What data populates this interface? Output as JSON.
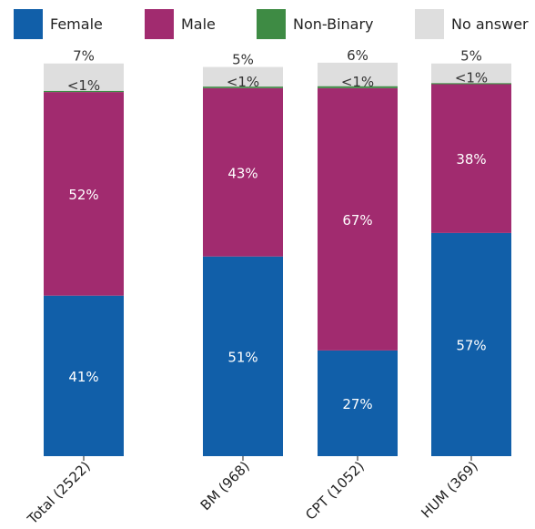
{
  "chart_data": {
    "type": "bar",
    "stacked": true,
    "percent_stacked": true,
    "categories": [
      "Total (2522)",
      "BM (968)",
      "CPT (1052)",
      "HUM (369)"
    ],
    "series": [
      {
        "name": "Female",
        "color": "#115fa9",
        "values": [
          41,
          51,
          27,
          57
        ],
        "labels": [
          "41%",
          "51%",
          "27%",
          "57%"
        ],
        "label_color": "#ffffff"
      },
      {
        "name": "Male",
        "color": "#a12b6f",
        "values": [
          52,
          43,
          67,
          38
        ],
        "labels": [
          "52%",
          "43%",
          "67%",
          "38%"
        ],
        "label_color": "#ffffff"
      },
      {
        "name": "Non-Binary",
        "color": "#3e8b44",
        "values": [
          0.3,
          0.4,
          0.5,
          0.3
        ],
        "labels": [
          "<1%",
          "<1%",
          "<1%",
          "<1%"
        ],
        "label_color": "#333333"
      },
      {
        "name": "No answer",
        "color": "#dedede",
        "values": [
          7,
          5,
          6,
          5
        ],
        "labels": [
          "7%",
          "5%",
          "6%",
          "5%"
        ],
        "label_color": "#333333"
      }
    ],
    "legend_position": "top",
    "ylim": [
      0,
      100
    ],
    "grid": false,
    "title": "",
    "xlabel": "",
    "ylabel": ""
  }
}
